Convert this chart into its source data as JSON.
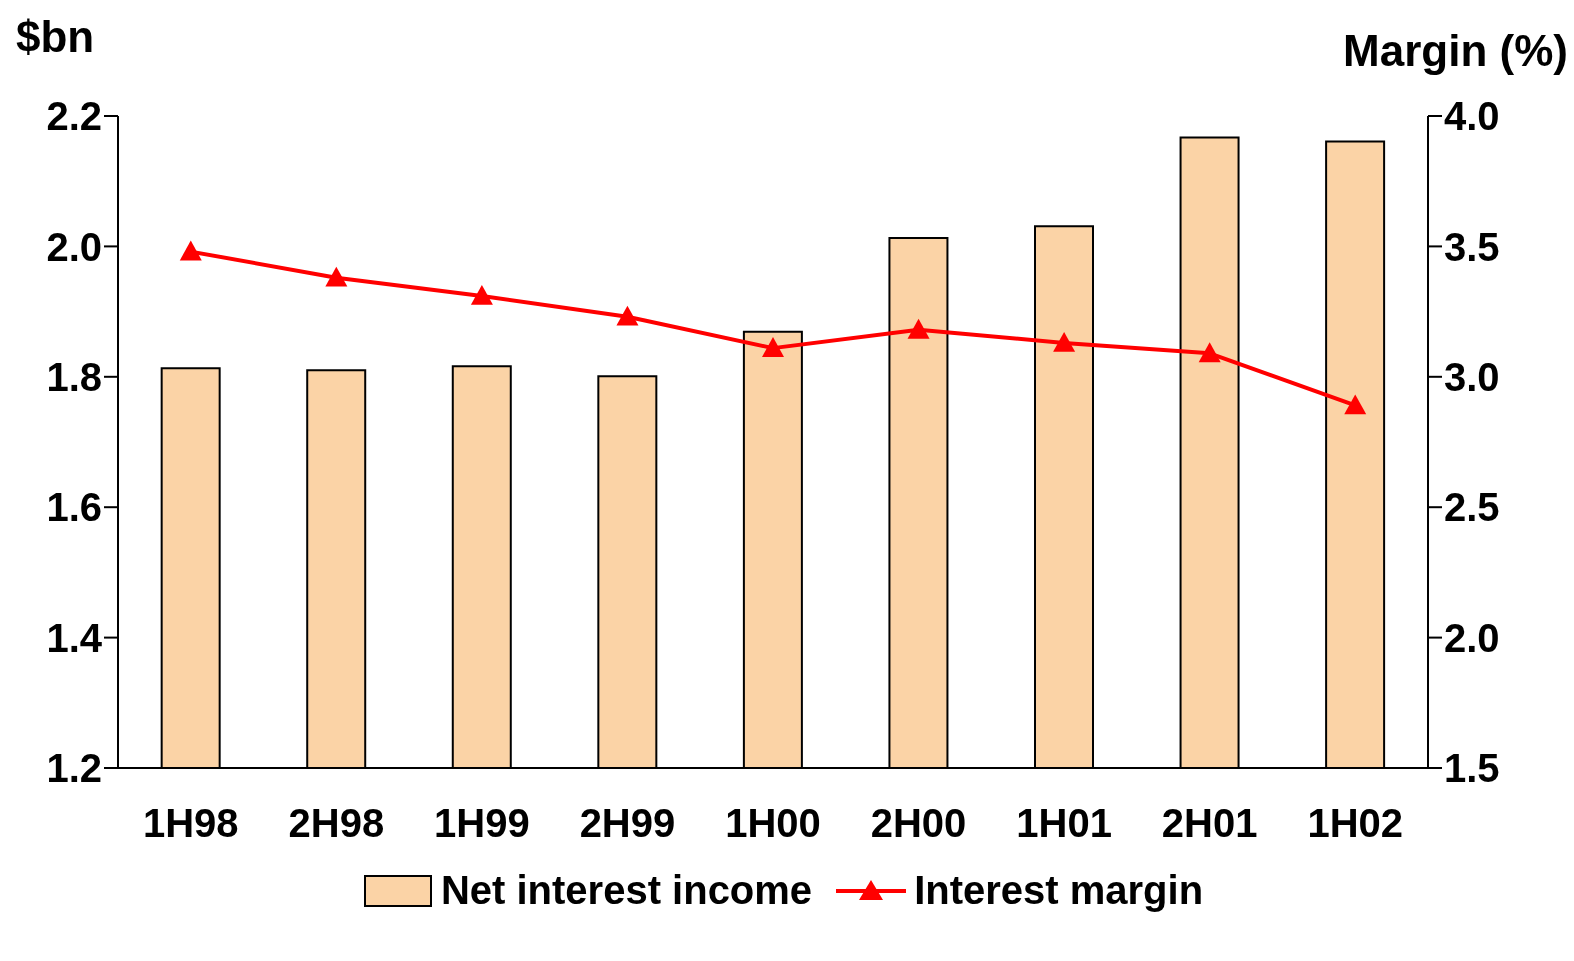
{
  "chart_data": {
    "type": "bar",
    "ylabel": "$bn",
    "y2label": "Margin (%)",
    "categories": [
      "1H98",
      "2H98",
      "1H99",
      "2H99",
      "1H00",
      "2H00",
      "1H01",
      "2H01",
      "1H02"
    ],
    "series": [
      {
        "name": "Net interest income",
        "color": "#fbd3a6",
        "values": [
          1.813,
          1.81,
          1.816,
          1.801,
          1.869,
          2.013,
          2.031,
          2.167,
          2.161
        ]
      },
      {
        "name": "Interest margin",
        "type": "line",
        "axis": "y2",
        "color": "#ff0000",
        "marker": "triangle",
        "values": [
          3.48,
          3.38,
          3.31,
          3.23,
          3.11,
          3.18,
          3.13,
          3.09,
          2.89
        ]
      }
    ],
    "ylim": [
      1.2,
      2.2
    ],
    "yticks": [
      {
        "value": 1.2,
        "label": "1.2"
      },
      {
        "value": 1.4,
        "label": "1.4"
      },
      {
        "value": 1.6,
        "label": "1.6"
      },
      {
        "value": 1.8,
        "label": "1.8"
      },
      {
        "value": 2.0,
        "label": "2.0"
      },
      {
        "value": 2.2,
        "label": "2.2"
      }
    ],
    "y2lim": [
      1.5,
      4.0
    ],
    "y2ticks": [
      {
        "value": 1.5,
        "label": "1.5"
      },
      {
        "value": 2.0,
        "label": "2.0"
      },
      {
        "value": 2.5,
        "label": "2.5"
      },
      {
        "value": 3.0,
        "label": "3.0"
      },
      {
        "value": 3.5,
        "label": "3.5"
      },
      {
        "value": 4.0,
        "label": "4.0"
      }
    ],
    "grid": false,
    "legend": "bottom"
  }
}
